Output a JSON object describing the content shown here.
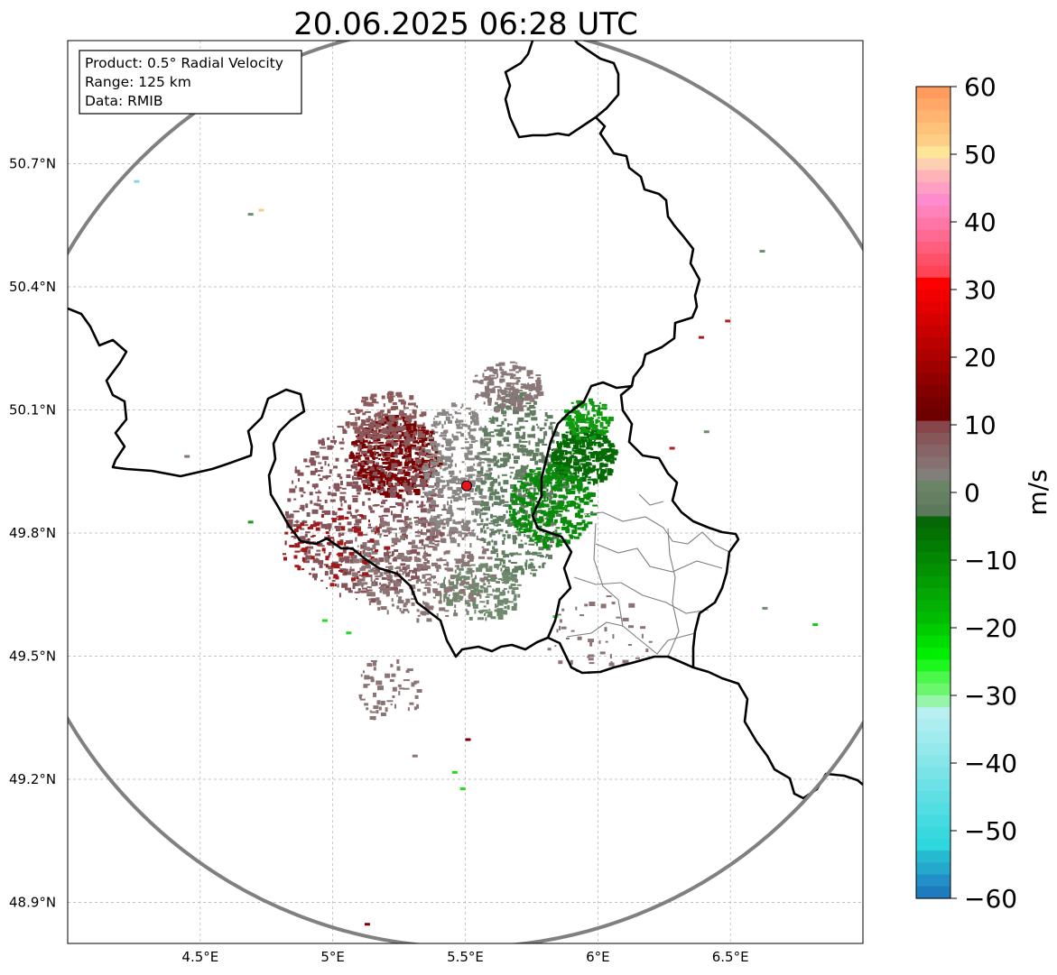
{
  "title": "20.06.2025 06:28 UTC",
  "info_box": {
    "lines": [
      "Product: 0.5° Radial Velocity",
      "Range: 125 km",
      "Data: RMIB"
    ]
  },
  "map": {
    "lon_range": [
      4.0,
      7.0
    ],
    "lat_range": [
      48.8,
      51.0
    ],
    "lon_ticks": [
      {
        "value": 4.5,
        "label": "4.5°E"
      },
      {
        "value": 5.0,
        "label": "5°E"
      },
      {
        "value": 5.5,
        "label": "5.5°E"
      },
      {
        "value": 6.0,
        "label": "6°E"
      },
      {
        "value": 6.5,
        "label": "6.5°E"
      }
    ],
    "lat_ticks": [
      {
        "value": 48.9,
        "label": "48.9°N"
      },
      {
        "value": 49.2,
        "label": "49.2°N"
      },
      {
        "value": 49.5,
        "label": "49.5°N"
      },
      {
        "value": 49.8,
        "label": "49.8°N"
      },
      {
        "value": 50.1,
        "label": "50.1°N"
      },
      {
        "value": 50.4,
        "label": "50.4°N"
      },
      {
        "value": 50.7,
        "label": "50.7°N"
      }
    ],
    "gridlines": true,
    "radar_site": {
      "lon": 5.505,
      "lat": 49.915
    },
    "range_km": 125,
    "colors": {
      "range_ring": "#808080",
      "border": "#000000",
      "admin_border": "#7f7f7f",
      "site_marker": "#e8141c"
    },
    "echo_regions": [
      {
        "cx": 5.23,
        "cy": 49.99,
        "rx": 0.17,
        "ry": 0.1,
        "color": "#7b0000",
        "count": 520
      },
      {
        "cx": 5.12,
        "cy": 49.86,
        "rx": 0.3,
        "ry": 0.22,
        "color": "#85555b",
        "count": 600
      },
      {
        "cx": 5.33,
        "cy": 49.72,
        "rx": 0.27,
        "ry": 0.13,
        "color": "#8c7575",
        "count": 360
      },
      {
        "cx": 5.46,
        "cy": 49.95,
        "rx": 0.13,
        "ry": 0.17,
        "color": "#8a8684",
        "count": 320
      },
      {
        "cx": 5.7,
        "cy": 49.92,
        "rx": 0.17,
        "ry": 0.23,
        "color": "#627d62",
        "count": 520
      },
      {
        "cx": 5.94,
        "cy": 49.99,
        "rx": 0.12,
        "ry": 0.07,
        "color": "#046a04",
        "count": 320
      },
      {
        "cx": 5.82,
        "cy": 49.87,
        "rx": 0.16,
        "ry": 0.1,
        "color": "#0a8a0a",
        "count": 360
      },
      {
        "cx": 5.95,
        "cy": 50.08,
        "rx": 0.09,
        "ry": 0.05,
        "color": "#0f9a0f",
        "count": 110
      },
      {
        "cx": 5.65,
        "cy": 50.16,
        "rx": 0.13,
        "ry": 0.06,
        "color": "#8a7777",
        "count": 160
      },
      {
        "cx": 5.2,
        "cy": 50.08,
        "rx": 0.15,
        "ry": 0.07,
        "color": "#8c5a5a",
        "count": 160
      },
      {
        "cx": 5.55,
        "cy": 49.66,
        "rx": 0.15,
        "ry": 0.07,
        "color": "#70886e",
        "count": 170
      },
      {
        "cx": 5.0,
        "cy": 49.77,
        "rx": 0.2,
        "ry": 0.1,
        "color": "#a01818",
        "count": 90
      },
      {
        "cx": 5.2,
        "cy": 49.42,
        "rx": 0.13,
        "ry": 0.08,
        "color": "#8a7474",
        "count": 60
      },
      {
        "cx": 6.0,
        "cy": 49.55,
        "rx": 0.2,
        "ry": 0.1,
        "color": "#8a7474",
        "count": 50
      }
    ],
    "speckles": [
      {
        "lon": 4.25,
        "lat": 50.66,
        "color": "#7fd9e8"
      },
      {
        "lon": 4.68,
        "lat": 50.58,
        "color": "#6e8c6e"
      },
      {
        "lon": 4.72,
        "lat": 50.59,
        "color": "#ffc98a"
      },
      {
        "lon": 6.61,
        "lat": 50.49,
        "color": "#6e8c6e"
      },
      {
        "lon": 6.48,
        "lat": 50.32,
        "color": "#b02020"
      },
      {
        "lon": 6.38,
        "lat": 50.28,
        "color": "#a02020"
      },
      {
        "lon": 6.81,
        "lat": 49.58,
        "color": "#22c022"
      },
      {
        "lon": 6.62,
        "lat": 49.62,
        "color": "#6e8c6e"
      },
      {
        "lon": 5.12,
        "lat": 48.85,
        "color": "#7b0000"
      },
      {
        "lon": 5.45,
        "lat": 49.22,
        "color": "#22dd22"
      },
      {
        "lon": 5.48,
        "lat": 49.18,
        "color": "#22dd22"
      },
      {
        "lon": 5.05,
        "lat": 49.56,
        "color": "#22dd22"
      },
      {
        "lon": 4.96,
        "lat": 49.59,
        "color": "#22dd22"
      },
      {
        "lon": 4.68,
        "lat": 49.83,
        "color": "#1a9a1a"
      },
      {
        "lon": 4.44,
        "lat": 49.99,
        "color": "#8a7474"
      },
      {
        "lon": 5.3,
        "lat": 49.26,
        "color": "#8a7474"
      },
      {
        "lon": 5.5,
        "lat": 49.3,
        "color": "#7b0000"
      },
      {
        "lon": 6.4,
        "lat": 50.05,
        "color": "#6e8c6e"
      },
      {
        "lon": 6.27,
        "lat": 50.01,
        "color": "#b02020"
      },
      {
        "lon": 5.83,
        "lat": 49.6,
        "color": "#22dd22"
      }
    ]
  },
  "colorbar": {
    "label": "m/s",
    "vmin": -60,
    "vmax": 60,
    "ticks": [
      {
        "value": 60,
        "label": "60"
      },
      {
        "value": 50,
        "label": "50"
      },
      {
        "value": 40,
        "label": "40"
      },
      {
        "value": 30,
        "label": "30"
      },
      {
        "value": 20,
        "label": "20"
      },
      {
        "value": 10,
        "label": "10"
      },
      {
        "value": 0,
        "label": "0"
      },
      {
        "value": -10,
        "label": "−10"
      },
      {
        "value": -20,
        "label": "−20"
      },
      {
        "value": -30,
        "label": "−30"
      },
      {
        "value": -40,
        "label": "−40"
      },
      {
        "value": -50,
        "label": "−50"
      },
      {
        "value": -60,
        "label": "−60"
      }
    ],
    "bins_top_to_bottom": [
      "#ff9b5c",
      "#ffa868",
      "#ffb571",
      "#ffc27b",
      "#ffce86",
      "#ffe596",
      "#ffcfb3",
      "#ffb3b8",
      "#ff9fc4",
      "#ff8bcf",
      "#ff82bb",
      "#ff76a6",
      "#ff6a92",
      "#ff5e7d",
      "#ff5069",
      "#ff4455",
      "#ff0000",
      "#f20000",
      "#e40000",
      "#d60000",
      "#c80000",
      "#bb0000",
      "#ad0000",
      "#9f0000",
      "#910000",
      "#830000",
      "#760000",
      "#6e0000",
      "#86464c",
      "#875659",
      "#876468",
      "#877070",
      "#827f7b",
      "#6b8465",
      "#647f62",
      "#5c7a5b",
      "#056705",
      "#037203",
      "#037c03",
      "#038703",
      "#039103",
      "#039c03",
      "#03a603",
      "#03b003",
      "#00bb00",
      "#00cc00",
      "#00dd00",
      "#00ee00",
      "#1df71d",
      "#4af74a",
      "#6ef56e",
      "#96f5a8",
      "#b8f0f2",
      "#aceef0",
      "#a0ebee",
      "#93e9ec",
      "#86e6ea",
      "#79e3e8",
      "#6ce1e6",
      "#5fdfe4",
      "#52dde2",
      "#45dbe0",
      "#38d9de",
      "#2ed6de",
      "#26bad0",
      "#24a9cd",
      "#228fc8",
      "#1e7bbe"
    ]
  }
}
